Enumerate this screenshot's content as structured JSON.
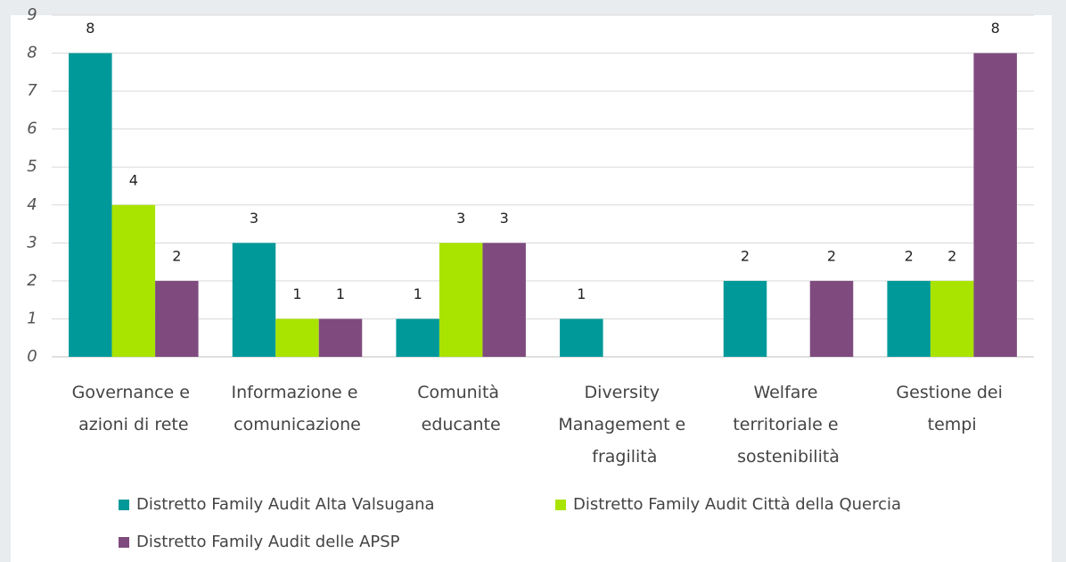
{
  "chart_data": {
    "type": "bar",
    "categories": [
      "Governance e azioni di rete",
      "Informazione e comunicazione",
      "Comunità educante",
      "Diversity Management e fragilità",
      "Welfare territoriale e sostenibilità",
      "Gestione dei tempi"
    ],
    "series": [
      {
        "name": "Distretto Family Audit Alta Valsugana",
        "color": "#009999",
        "values": [
          8,
          3,
          1,
          1,
          2,
          2
        ]
      },
      {
        "name": "Distretto Family Audit Città della Quercia",
        "color": "#a9e300",
        "values": [
          4,
          1,
          3,
          null,
          null,
          2
        ]
      },
      {
        "name": "Distretto Family Audit delle APSP",
        "color": "#7f4b7e",
        "values": [
          2,
          1,
          3,
          null,
          2,
          8
        ]
      }
    ],
    "ylim": [
      0,
      9
    ],
    "yticks": [
      0,
      1,
      2,
      3,
      4,
      5,
      6,
      7,
      8,
      9
    ],
    "grid": true,
    "legend": "bottom"
  }
}
